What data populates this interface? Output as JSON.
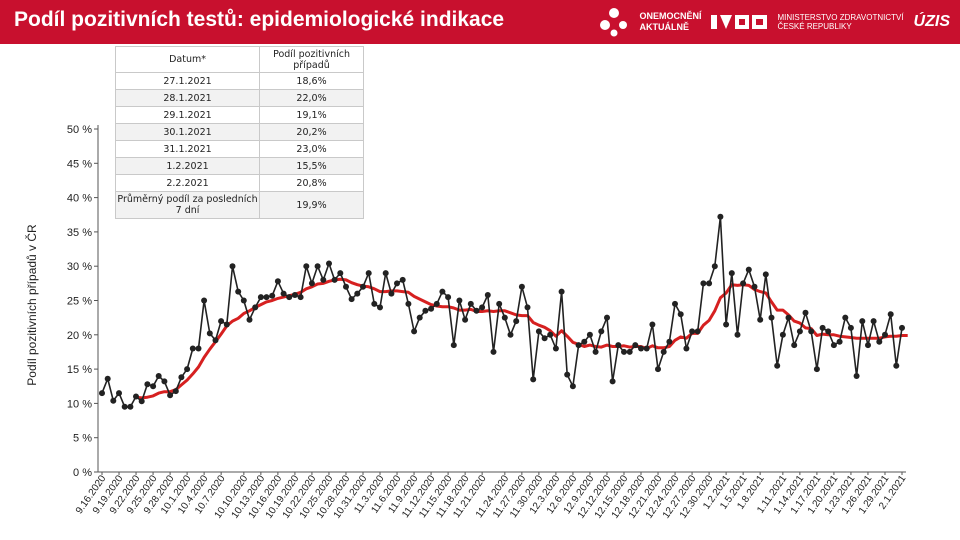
{
  "header": {
    "title": "Podíl pozitivních testů: epidemiologické indikace",
    "logo1_line1": "ONEMOCNĚNÍ",
    "logo1_line2": "AKTUÁLNĚ",
    "logo2_line1": "MINISTERSTVO ZDRAVOTNICTVÍ",
    "logo2_line2": "ČESKÉ REPUBLIKY",
    "logo3": "ÚZIS",
    "accent_color": "#c8102e"
  },
  "summary_table": {
    "col_date": "Datum*",
    "col_share": "Podíl pozitivních případů",
    "rows": [
      {
        "date": "27.1.2021",
        "share": "18,6%"
      },
      {
        "date": "28.1.2021",
        "share": "22,0%"
      },
      {
        "date": "29.1.2021",
        "share": "19,1%"
      },
      {
        "date": "30.1.2021",
        "share": "20,2%"
      },
      {
        "date": "31.1.2021",
        "share": "23,0%"
      },
      {
        "date": "1.2.2021",
        "share": "15,5%"
      },
      {
        "date": "2.2.2021",
        "share": "20,8%"
      }
    ],
    "avg_label": "Průměrný podíl za posledních 7 dní",
    "avg_value": "19,9%"
  },
  "chart_data": {
    "type": "line",
    "ylabel": "Podíl pozitivních případů v ČR",
    "ylim": [
      0,
      50
    ],
    "yticks": [
      "0 %",
      "5 %",
      "10 %",
      "15 %",
      "20 %",
      "25 %",
      "30 %",
      "35 %",
      "40 %",
      "45 %",
      "50 %"
    ],
    "xticks": [
      "9.16.2020",
      "9.19.2020",
      "9.22.2020",
      "9.25.2020",
      "9.28.2020",
      "10.1.2020",
      "10.4.2020",
      "10.7.2020",
      "10.10.2020",
      "10.13.2020",
      "10.16.2020",
      "10.19.2020",
      "10.22.2020",
      "10.25.2020",
      "10.28.2020",
      "10.31.2020",
      "11.3.2020",
      "11.6.2020",
      "11.9.2020",
      "11.12.2020",
      "11.15.2020",
      "11.18.2020",
      "11.21.2020",
      "11.24.2020",
      "11.27.2020",
      "11.30.2020",
      "12.3.2020",
      "12.6.2020",
      "12.9.2020",
      "12.12.2020",
      "12.15.2020",
      "12.18.2020",
      "12.21.2020",
      "12.24.2020",
      "12.27.2020",
      "12.30.2020",
      "1.2.2021",
      "1.5.2021",
      "1.8.2021",
      "1.11.2021",
      "1.14.2021",
      "1.17.2021",
      "1.20.2021",
      "1.23.2021",
      "1.26.2021",
      "1.29.2021",
      "2.1.2021"
    ],
    "series": [
      {
        "color": "#222222",
        "marker": "circle",
        "values": [
          11.5,
          13.6,
          10.4,
          11.5,
          9.5,
          9.5,
          11.0,
          10.3,
          12.8,
          12.5,
          14.0,
          13.2,
          11.2,
          11.8,
          13.8,
          15.0,
          18.0,
          18.0,
          25.0,
          20.2,
          19.2,
          22.0,
          21.5,
          30.0,
          26.3,
          25.0,
          22.2,
          24.0,
          25.5,
          25.5,
          25.7,
          27.8,
          26.0,
          25.5,
          25.8,
          25.5,
          30.0,
          27.5,
          30.0,
          28.0,
          30.4,
          28.0,
          29.0,
          27.0,
          25.2,
          26.0,
          27.0,
          29.0,
          24.5,
          24.0,
          29.0,
          26.0,
          27.5,
          28.0,
          24.5,
          20.5,
          22.5,
          23.5,
          23.8,
          24.5,
          26.3,
          25.5,
          18.5,
          25.0,
          22.2,
          24.5,
          23.5,
          24.0,
          25.8,
          17.5,
          24.5,
          22.5,
          20.0,
          22.0,
          27.0,
          24.0,
          13.5,
          20.5,
          19.5,
          20.0,
          18.0,
          26.3,
          14.2,
          12.5,
          18.5,
          19.0,
          20.0,
          17.5,
          20.5,
          22.5,
          13.2,
          18.5,
          17.5,
          17.5,
          18.5,
          18.0,
          18.0,
          21.5,
          15.0,
          17.5,
          19.0,
          24.5,
          23.0,
          18.0,
          20.5,
          20.5,
          27.5,
          27.5,
          30.0,
          37.2,
          21.5,
          29.0,
          20.0,
          27.5,
          29.5,
          27.0,
          22.2,
          28.8,
          22.5,
          15.5,
          20.0,
          22.5,
          18.5,
          20.5,
          23.2,
          20.5,
          15.0,
          21.0,
          20.5,
          18.5,
          19.0,
          22.5,
          21.0,
          14.0,
          22.0,
          18.5,
          22.0,
          19.0,
          20.0,
          23.0,
          15.5,
          21.0
        ]
      },
      {
        "color": "#d62020",
        "marker": "none",
        "values": [
          null,
          null,
          null,
          null,
          null,
          null,
          10.9,
          10.8,
          10.9,
          11.1,
          11.5,
          11.7,
          11.7,
          12.0,
          12.7,
          13.4,
          14.3,
          15.3,
          16.7,
          17.9,
          19.0,
          20.1,
          21.3,
          22.0,
          22.4,
          23.1,
          23.5,
          24.0,
          24.4,
          24.8,
          25.0,
          25.3,
          25.5,
          25.7,
          25.9,
          26.2,
          26.7,
          27.0,
          27.4,
          27.5,
          27.8,
          28.0,
          28.1,
          28.0,
          27.6,
          27.3,
          27.1,
          27.0,
          26.7,
          26.3,
          26.3,
          26.4,
          26.4,
          26.3,
          26.2,
          25.6,
          25.2,
          24.8,
          24.4,
          24.2,
          24.1,
          24.1,
          23.9,
          23.6,
          23.6,
          23.7,
          23.4,
          23.4,
          23.5,
          23.4,
          23.5,
          23.5,
          23.2,
          22.9,
          22.8,
          22.8,
          21.8,
          21.4,
          21.1,
          20.6,
          19.8,
          20.6,
          19.8,
          18.9,
          18.6,
          18.3,
          18.5,
          18.3,
          18.2,
          18.5,
          18.3,
          18.3,
          18.4,
          18.2,
          18.3,
          18.3,
          18.0,
          18.4,
          18.1,
          18.1,
          18.3,
          19.2,
          19.7,
          19.5,
          20.2,
          20.2,
          21.4,
          22.1,
          23.5,
          25.4,
          26.1,
          27.3,
          27.2,
          27.3,
          27.2,
          26.6,
          26.3,
          26.1,
          24.8,
          23.6,
          23.6,
          22.9,
          22.0,
          21.7,
          21.0,
          20.9,
          19.9,
          20.1,
          20.0,
          20.0,
          19.8,
          19.7,
          19.6,
          19.5,
          19.5,
          19.5,
          19.5,
          19.5,
          19.7,
          19.8,
          19.8,
          19.9,
          19.9
        ]
      }
    ]
  }
}
